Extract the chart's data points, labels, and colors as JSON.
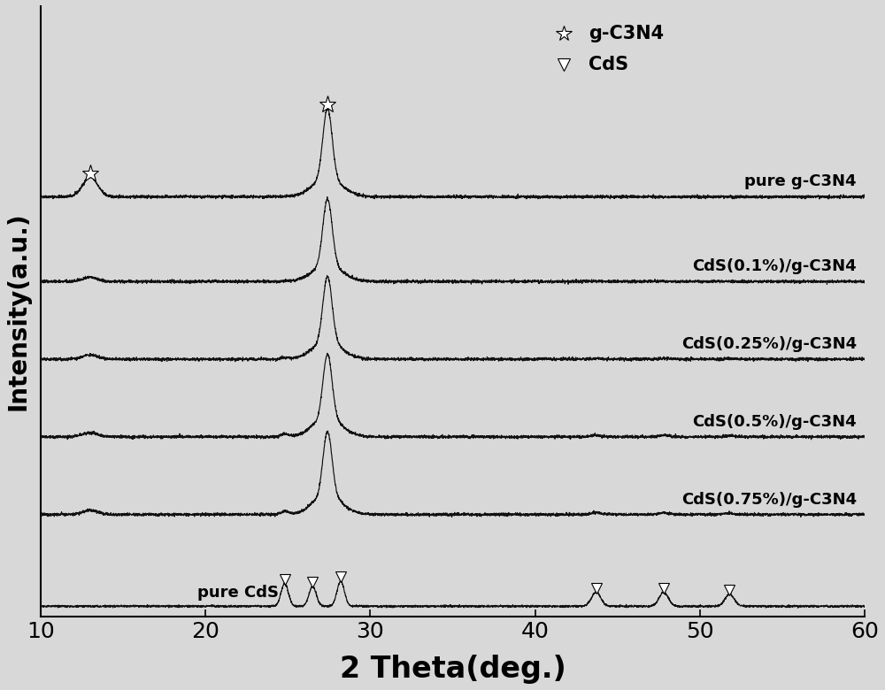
{
  "title": "",
  "xlabel": "2 Theta(deg.)",
  "ylabel": "Intensity(a.u.)",
  "xlim": [
    10,
    60
  ],
  "ylim": [
    -0.15,
    8.5
  ],
  "x_ticks": [
    10,
    20,
    30,
    40,
    50,
    60
  ],
  "background_color": "#d8d8d8",
  "plot_bg_color": "#d8d8d8",
  "line_color": "#111111",
  "series_labels": [
    "pure g-C3N4",
    "CdS(0.1%)/g-C3N4",
    "CdS(0.25%)/g-C3N4",
    "CdS(0.5%)/g-C3N4",
    "CdS(0.75%)/g-C3N4",
    "pure CdS"
  ],
  "offsets": [
    5.8,
    4.6,
    3.5,
    2.4,
    1.3,
    0.0
  ],
  "g_C3N4_peaks": [
    13.0,
    27.4
  ],
  "CdS_peaks": [
    24.8,
    26.5,
    28.2,
    43.7,
    47.8,
    51.8
  ],
  "xlabel_fontsize": 24,
  "ylabel_fontsize": 20,
  "tick_fontsize": 18,
  "label_fontsize": 13,
  "legend_fontsize": 15
}
